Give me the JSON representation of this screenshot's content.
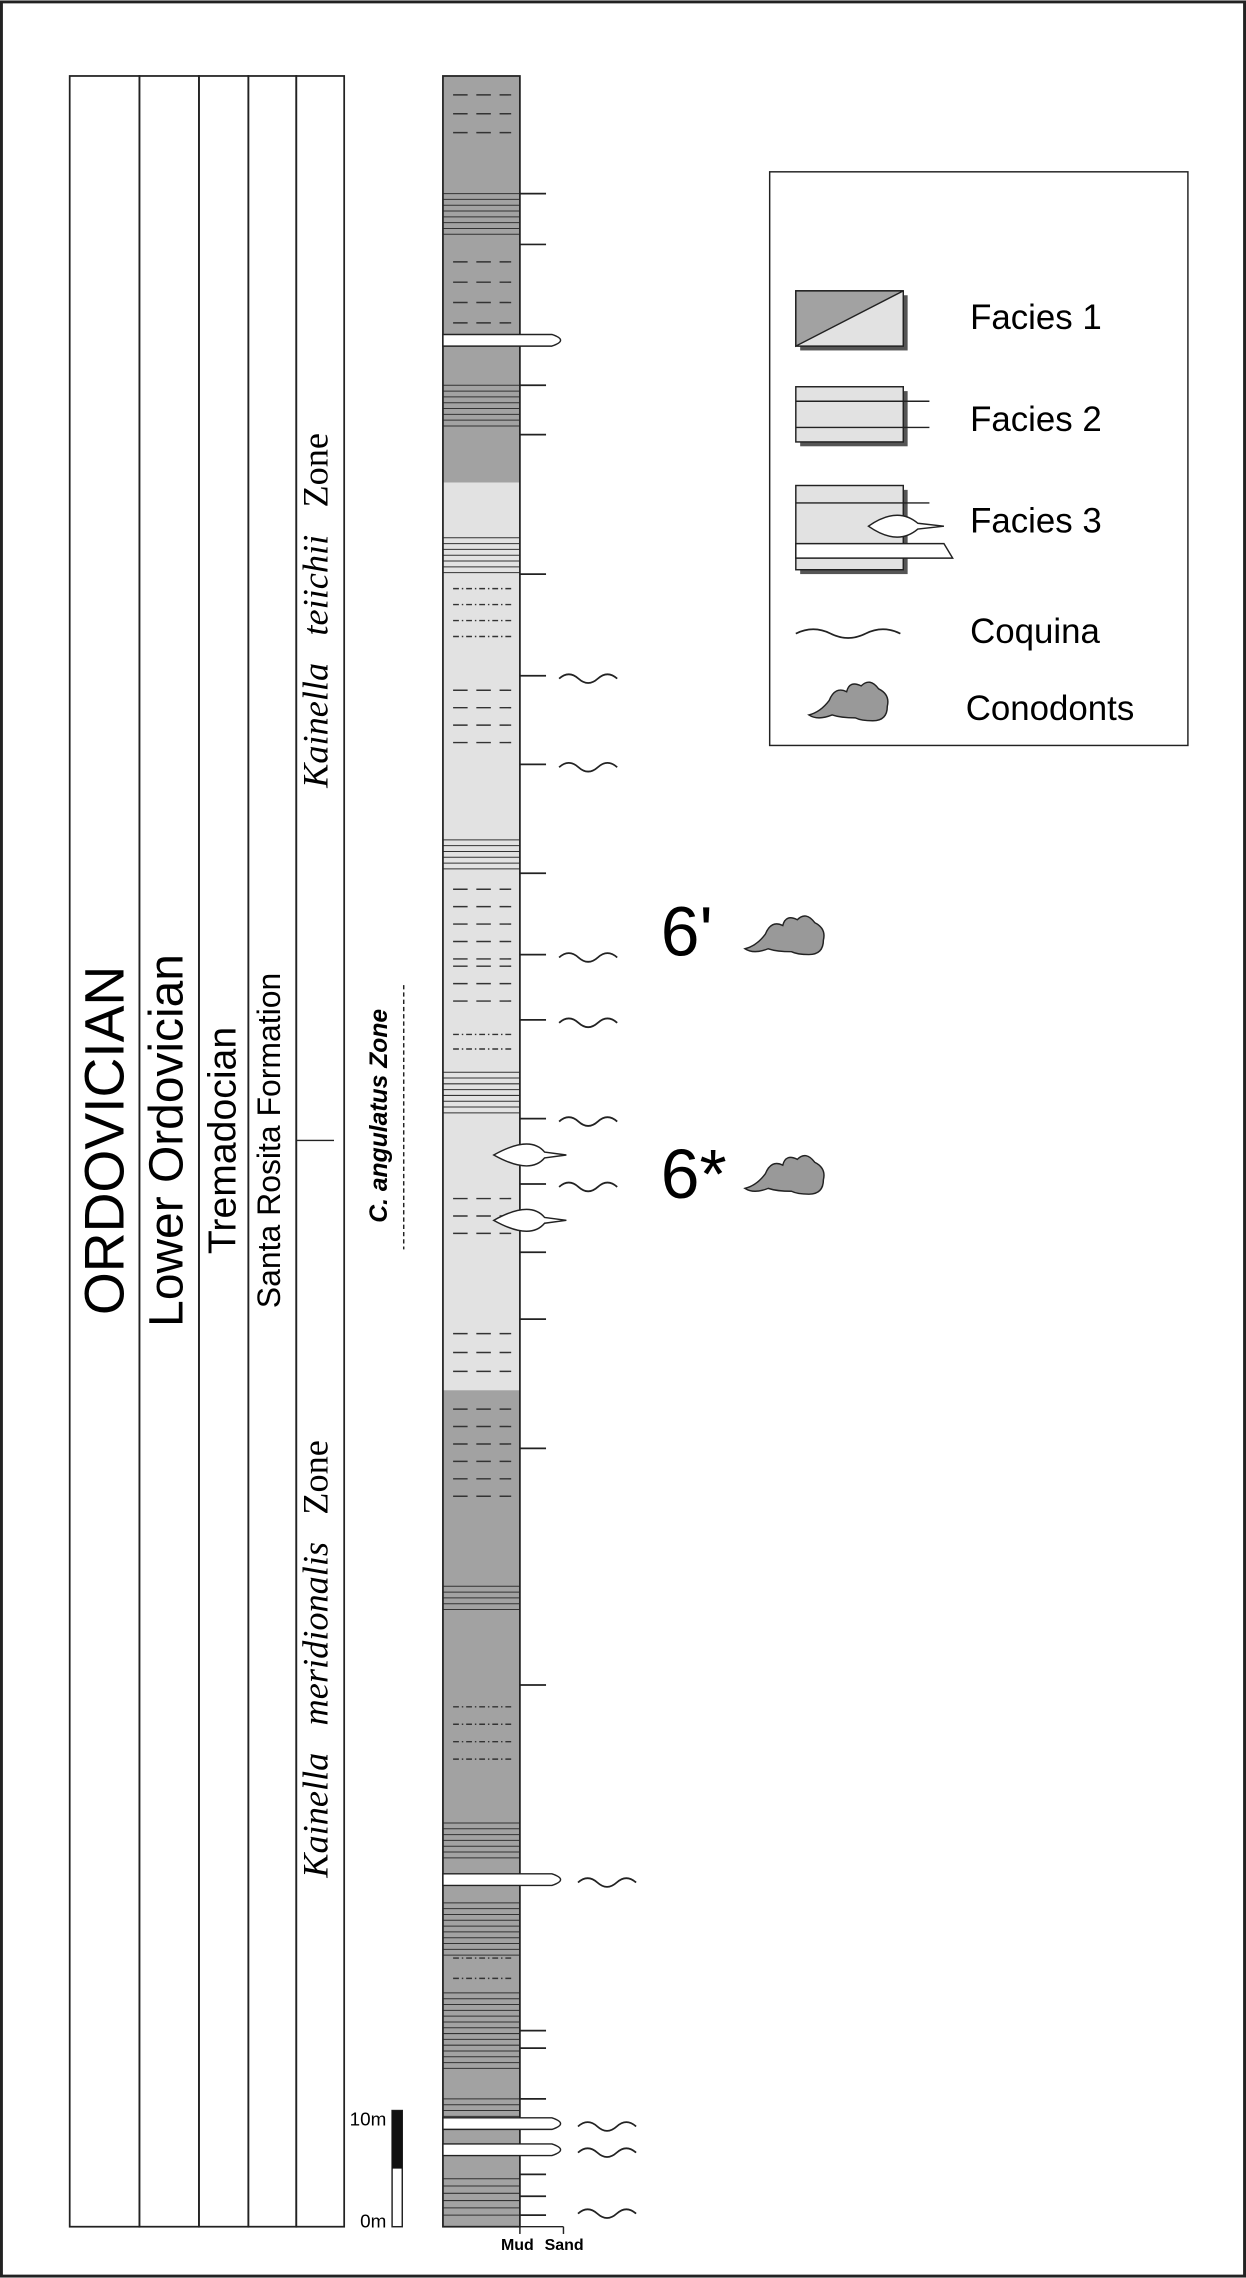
{
  "columns": {
    "system": "ORDOVICIAN",
    "series": "Lower Ordovician",
    "stage": "Tremadocian",
    "formation": "Santa Rosita Formation",
    "biozones": [
      {
        "genus": "Kainella",
        "species": "teiichii",
        "suffix": "Zone"
      },
      {
        "genus": "Kainella",
        "species": "meridionalis",
        "suffix": "Zone"
      }
    ]
  },
  "conodont_zone": "C. angulatus Zone",
  "legend": [
    "Facies 1",
    "Facies 2",
    "Facies 3",
    "Coquina",
    "Conodonts"
  ],
  "samples": [
    "6'",
    "6*"
  ],
  "scale": {
    "top": "10m",
    "bottom": "0m"
  },
  "lithology_axis": [
    "Mud",
    "Sand"
  ]
}
